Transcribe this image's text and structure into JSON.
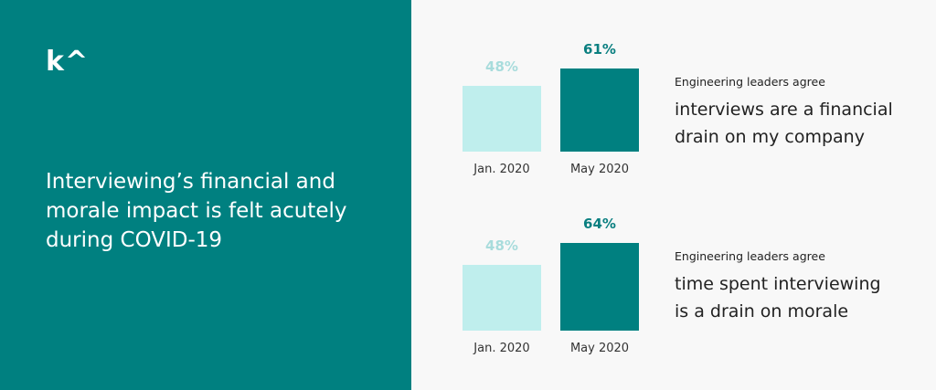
{
  "brand": {
    "logo": "k^",
    "panel_color": "#008080"
  },
  "headline": "Interviewing’s financial and morale impact is felt acutely during COVID-19",
  "chart_data": [
    {
      "type": "bar",
      "categories": [
        "Jan. 2020",
        "May 2020"
      ],
      "values": [
        48,
        61
      ],
      "data_labels": [
        "48%",
        "61%"
      ],
      "colors": [
        "#bfeeed",
        "#008080"
      ],
      "label_colors": [
        "#a8dcdc",
        "#0a7f80"
      ],
      "ylim": [
        0,
        100
      ],
      "description": {
        "lead": "Engineering leaders agree",
        "statement": "interviews are a financial drain on my company"
      }
    },
    {
      "type": "bar",
      "categories": [
        "Jan. 2020",
        "May 2020"
      ],
      "values": [
        48,
        64
      ],
      "data_labels": [
        "48%",
        "64%"
      ],
      "colors": [
        "#bfeeed",
        "#008080"
      ],
      "label_colors": [
        "#a8dcdc",
        "#0a7f80"
      ],
      "ylim": [
        0,
        100
      ],
      "description": {
        "lead": "Engineering leaders agree",
        "statement": "time spent interviewing is a drain on morale"
      }
    }
  ]
}
